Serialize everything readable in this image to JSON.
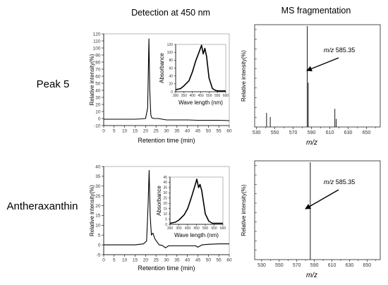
{
  "headers": {
    "left": "Detection at 450 nm",
    "right": "MS fragmentation"
  },
  "rows": [
    {
      "label": "Peak 5"
    },
    {
      "label": "Antheraxanthin"
    }
  ],
  "chart_data": [
    {
      "id": "peak5-chromatogram",
      "type": "line",
      "xlabel": "Retention time (min)",
      "ylabel": "Relative intensity(%)",
      "xlim": [
        0,
        60
      ],
      "ylim": [
        -10,
        120
      ],
      "xticks": [
        "0",
        "5",
        "10",
        "15",
        "20",
        "25",
        "30",
        "35",
        "40",
        "45",
        "50",
        "55",
        "60"
      ],
      "yticks": [
        "-10",
        "0",
        "10",
        "20",
        "30",
        "40",
        "50",
        "60",
        "70",
        "80",
        "90",
        "100",
        "110",
        "120"
      ],
      "series": [
        {
          "x": [
            0,
            5,
            10,
            15,
            18,
            20,
            21.0,
            21.6,
            22.0,
            22.5,
            23,
            24,
            26,
            28,
            30,
            35,
            40,
            45,
            50,
            55,
            60
          ],
          "y": [
            -1,
            -1,
            -1,
            -1,
            -0.5,
            0,
            15,
            113,
            40,
            5,
            1,
            0,
            0,
            -1,
            -2,
            -2,
            -2,
            -2.5,
            -2.5,
            -2.5,
            -3
          ]
        }
      ]
    },
    {
      "id": "peak5-spectrum",
      "type": "line",
      "xlabel": "Wave length (nm)",
      "ylabel": "Absorbance",
      "xlim": [
        300,
        600
      ],
      "ylim": [
        0,
        120
      ],
      "xticks": [
        "300",
        "350",
        "400",
        "450",
        "500",
        "550",
        "600"
      ],
      "yticks": [
        "0",
        "20",
        "40",
        "60",
        "80",
        "100",
        "120"
      ],
      "series": [
        {
          "x": [
            300,
            330,
            350,
            380,
            400,
            420,
            440,
            455,
            465,
            475,
            485,
            500,
            520,
            540,
            560,
            580,
            600
          ],
          "y": [
            5,
            8,
            15,
            28,
            50,
            78,
            100,
            118,
            96,
            110,
            90,
            35,
            8,
            3,
            2,
            2,
            2
          ]
        }
      ]
    },
    {
      "id": "peak5-ms",
      "type": "bar",
      "title": "",
      "xlabel": "m/z",
      "ylabel": "Relative intensity(%)",
      "xlim": [
        528,
        665
      ],
      "ylim": [
        0,
        100
      ],
      "xticks": [
        "530",
        "550",
        "570",
        "590",
        "610",
        "630",
        "650"
      ],
      "minor_xticks": [
        "540",
        "560",
        "580",
        "600",
        "620",
        "640",
        "660"
      ],
      "x": [
        541,
        545,
        585.35,
        586.5,
        615.5,
        617
      ],
      "values": [
        14,
        10,
        100,
        44,
        18,
        8
      ],
      "annotation": {
        "prefix": "m/z",
        "value": "585.35"
      }
    },
    {
      "id": "anther-chromatogram",
      "type": "line",
      "xlabel": "Retention time (min)",
      "ylabel": "Relative intensity(%)",
      "xlim": [
        0,
        60
      ],
      "ylim": [
        -5,
        40
      ],
      "xticks": [
        "0",
        "5",
        "10",
        "15",
        "20",
        "25",
        "30",
        "35",
        "40",
        "45",
        "50",
        "55",
        "60"
      ],
      "yticks": [
        "-5",
        "0",
        "5",
        "10",
        "15",
        "20",
        "25",
        "30",
        "35",
        "40"
      ],
      "series": [
        {
          "x": [
            0,
            5,
            10,
            15,
            19,
            20.5,
            21.2,
            21.7,
            22.2,
            22.8,
            23.5,
            24.5,
            25.5,
            26.5,
            28,
            29.5,
            31,
            33,
            35,
            40,
            44,
            45,
            47,
            50,
            55,
            60
          ],
          "y": [
            0,
            0,
            0,
            0,
            0.5,
            2,
            20,
            38,
            15,
            5,
            6,
            3,
            1.5,
            0,
            -0.3,
            -1.5,
            -0.5,
            -0.5,
            -0.5,
            -0.5,
            -0.5,
            -1.2,
            0,
            0.3,
            0.5,
            0.5
          ]
        }
      ]
    },
    {
      "id": "anther-spectrum",
      "type": "line",
      "xlabel": "Wave length (nm)",
      "ylabel": "Absorbance",
      "xlim": [
        300,
        600
      ],
      "ylim": [
        0,
        45
      ],
      "xticks": [
        "300",
        "350",
        "400",
        "450",
        "500",
        "550",
        "600"
      ],
      "yticks": [
        "0",
        "5",
        "10",
        "15",
        "20",
        "25",
        "30",
        "35",
        "40",
        "45"
      ],
      "series": [
        {
          "x": [
            300,
            330,
            350,
            380,
            400,
            420,
            440,
            452,
            462,
            470,
            480,
            500,
            520,
            540,
            560,
            580,
            600
          ],
          "y": [
            1,
            2,
            4,
            9,
            15,
            25,
            36,
            43,
            35,
            38,
            32,
            10,
            3,
            1,
            1,
            1,
            1
          ]
        }
      ]
    },
    {
      "id": "anther-ms",
      "type": "bar",
      "title": "",
      "xlabel": "m/z",
      "ylabel": "Relative intensity(%)",
      "xlim": [
        522,
        665
      ],
      "ylim": [
        0,
        100
      ],
      "xticks": [
        "530",
        "550",
        "570",
        "590",
        "610",
        "630",
        "650"
      ],
      "minor_xticks": [
        "540",
        "560",
        "580",
        "600",
        "620",
        "640",
        "660"
      ],
      "x": [
        585.35
      ],
      "values": [
        100
      ],
      "annotation": {
        "prefix": "m/z",
        "value": "585.35"
      }
    }
  ]
}
